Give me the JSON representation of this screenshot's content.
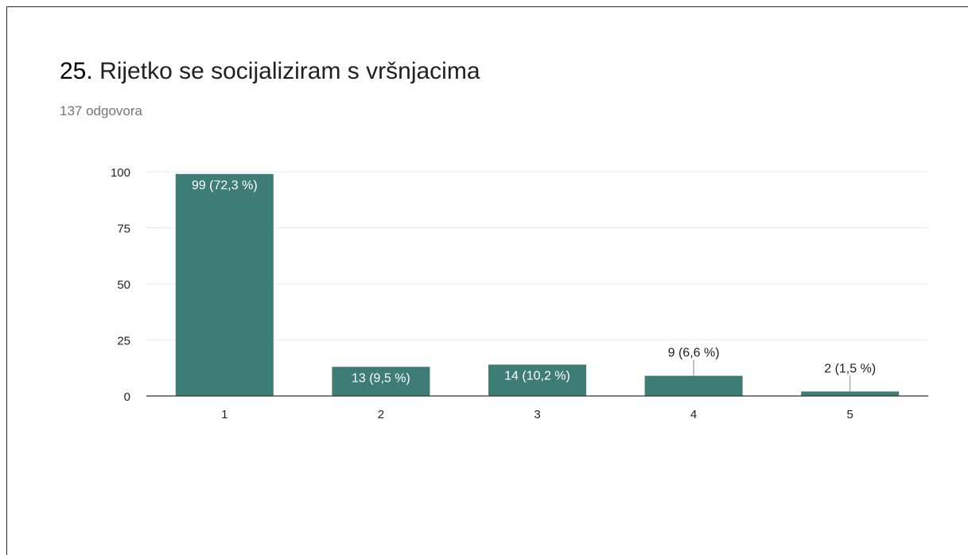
{
  "form": {
    "question_number": "25.",
    "question_text": "Rijetko se socijaliziram s vršnjacima",
    "response_count": "137 odgovora"
  },
  "chart_data": {
    "type": "bar",
    "title": "25. Rijetko se socijaliziram s vršnjacima",
    "subtitle": "137 odgovora",
    "categories": [
      "1",
      "2",
      "3",
      "4",
      "5"
    ],
    "values": [
      99,
      13,
      14,
      9,
      2
    ],
    "data_labels": [
      "99 (72,3 %)",
      "13 (9,5 %)",
      "14 (10,2 %)",
      "9 (6,6 %)",
      "2 (1,5 %)"
    ],
    "ylim": [
      0,
      100
    ],
    "yticks": [
      0,
      25,
      50,
      75,
      100
    ],
    "ytick_labels": [
      "0",
      "25",
      "50",
      "75",
      "100"
    ],
    "grid": true,
    "legend": "none",
    "bar_color": "#3d7d76",
    "gridline_color": "#e8e8e8",
    "axis_color": "#333333"
  }
}
